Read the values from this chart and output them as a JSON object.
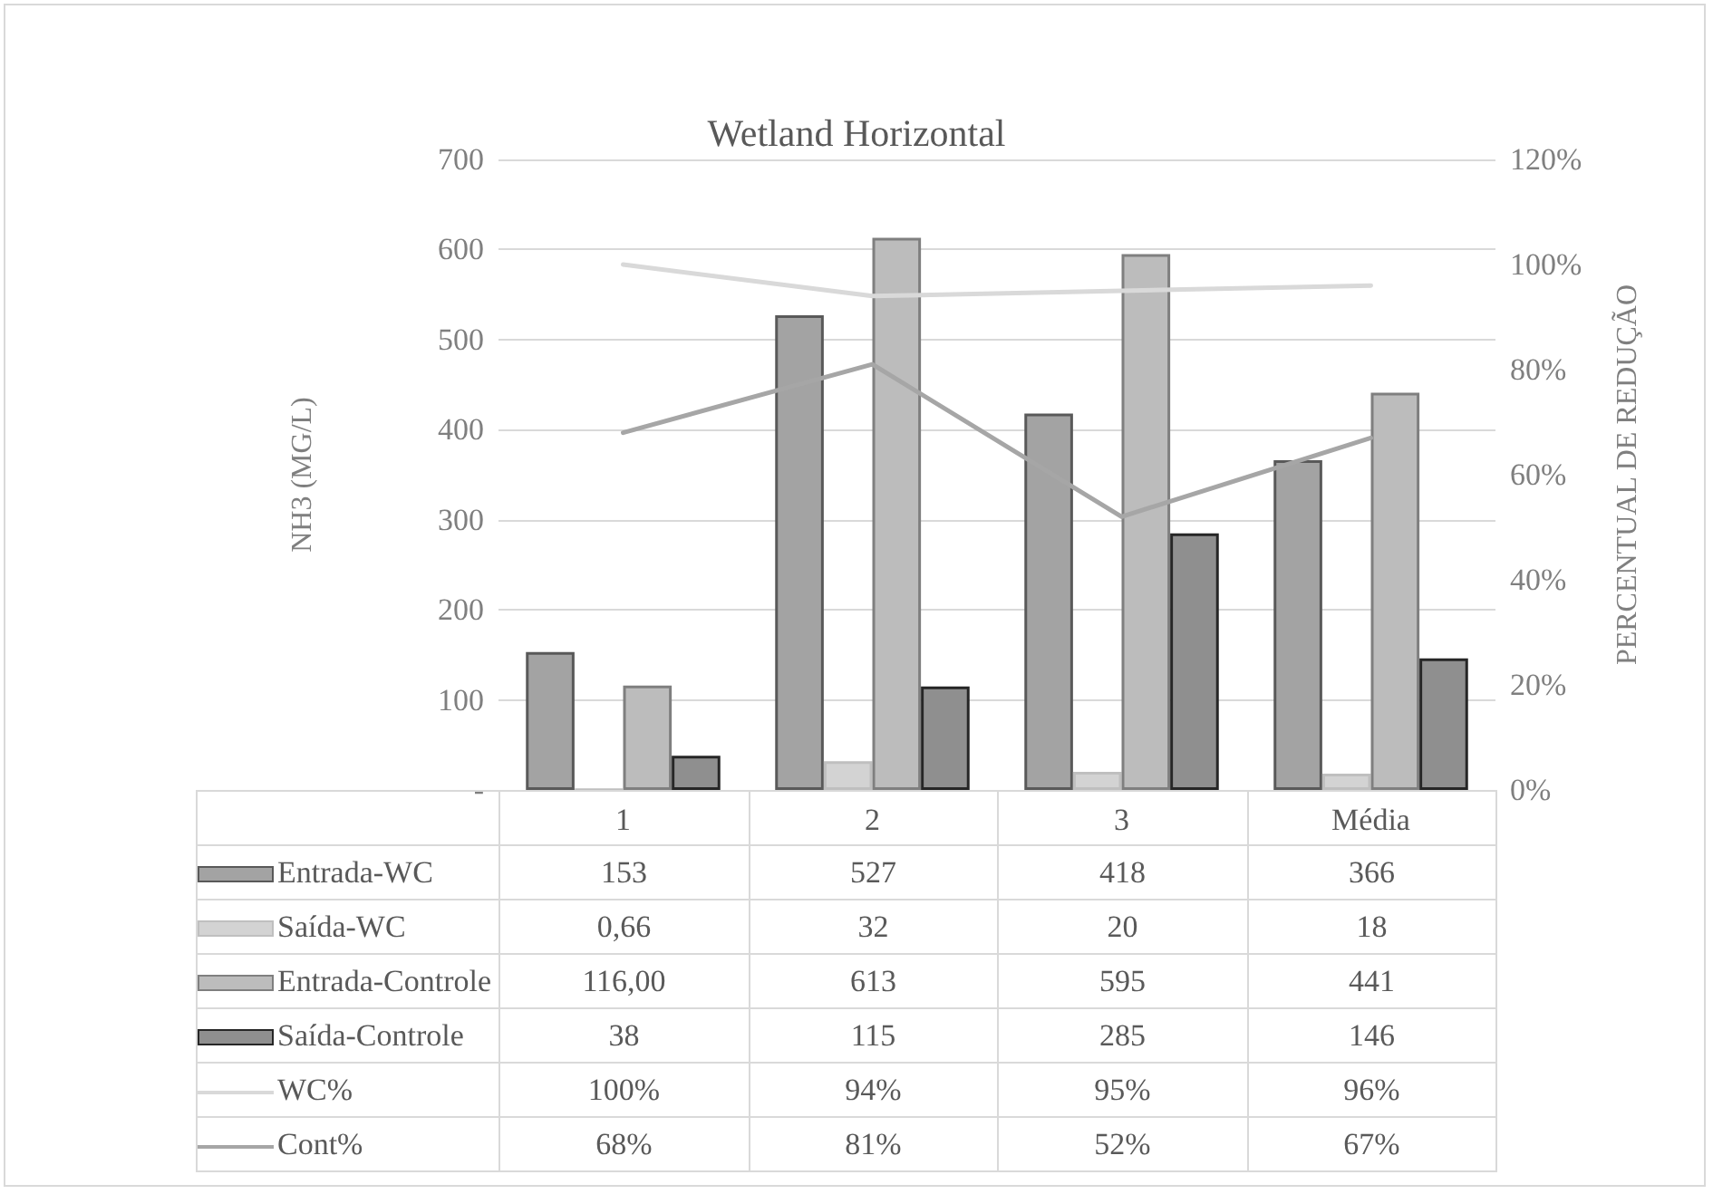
{
  "chart_data": {
    "type": "bar",
    "title": "Wetland Horizontal",
    "ylabel": "NH3 (MG/L)",
    "y2label": "PERCENTUAL DE REDUÇÃO",
    "categories": [
      "1",
      "2",
      "3",
      "Média"
    ],
    "series": [
      {
        "name": "Entrada-WC",
        "color": "#a3a3a3",
        "values": [
          153,
          527,
          418,
          366
        ],
        "value_labels": [
          "153",
          "527",
          "418",
          "366"
        ]
      },
      {
        "name": "Saída-WC",
        "color": "#d3d3d3",
        "values": [
          0.66,
          32,
          20,
          18
        ],
        "value_labels": [
          "0,66",
          "32",
          "20",
          "18"
        ]
      },
      {
        "name": "Entrada-Controle",
        "color": "#bcbcbc",
        "values": [
          116,
          613,
          595,
          441
        ],
        "value_labels": [
          "116,00",
          "613",
          "595",
          "441"
        ]
      },
      {
        "name": "Saída-Controle",
        "color": "#8f8f8f",
        "values": [
          38,
          115,
          285,
          146
        ],
        "value_labels": [
          "38",
          "115",
          "285",
          "146"
        ]
      },
      {
        "name": "WC%",
        "type": "line",
        "axis": "y2",
        "color": "#d9d9d9",
        "values": [
          100,
          94,
          95,
          96
        ],
        "value_labels": [
          "100%",
          "94%",
          "95%",
          "96%"
        ]
      },
      {
        "name": "Cont%",
        "type": "line",
        "axis": "y2",
        "color": "#a6a6a6",
        "values": [
          68,
          81,
          52,
          67
        ],
        "value_labels": [
          "68%",
          "81%",
          "52%",
          "67%"
        ]
      }
    ],
    "ylim": [
      0,
      700
    ],
    "yticks": [
      {
        "value": 0,
        "label": "-"
      },
      100,
      200,
      300,
      400,
      500,
      600,
      700
    ],
    "y2lim": [
      0,
      120
    ],
    "y2ticks": [
      {
        "value": 0,
        "label": "0%"
      },
      {
        "value": 20,
        "label": "20%"
      },
      {
        "value": 40,
        "label": "40%"
      },
      {
        "value": 60,
        "label": "60%"
      },
      {
        "value": 80,
        "label": "80%"
      },
      {
        "value": 100,
        "label": "100%"
      },
      {
        "value": 120,
        "label": "120%"
      }
    ],
    "grid": "y",
    "legend": "bottom",
    "marker": "none"
  }
}
